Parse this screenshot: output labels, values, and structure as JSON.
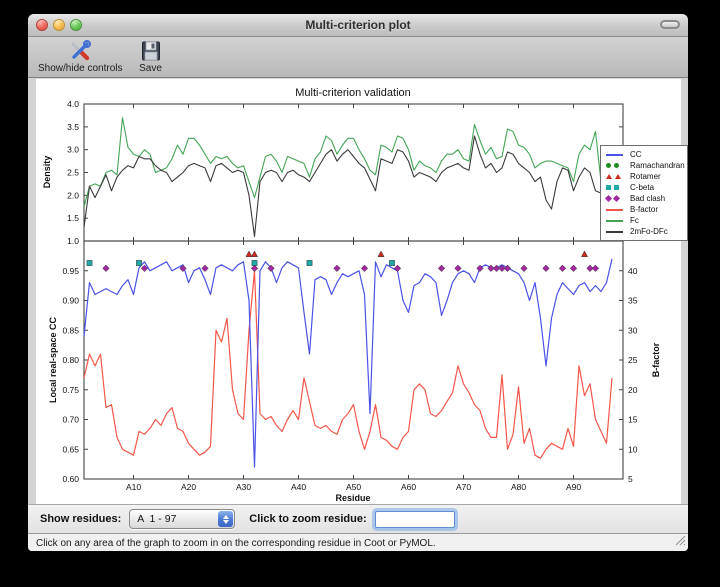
{
  "window": {
    "title": "Multi-criterion plot"
  },
  "toolbar": {
    "buttons": [
      {
        "label": "Show/hide controls",
        "icon": "tools-icon"
      },
      {
        "label": "Save",
        "icon": "save-icon"
      }
    ]
  },
  "figure": {
    "legend": {
      "items": [
        {
          "label": "CC",
          "swatch": "line",
          "color": "#4a52e8"
        },
        {
          "label": "Ramachandran",
          "swatch": "circle",
          "color": "#1e8c1e"
        },
        {
          "label": "Rotamer",
          "swatch": "triangle",
          "color": "#cc2b1d"
        },
        {
          "label": "C-beta",
          "swatch": "square",
          "color": "#1fa8a8"
        },
        {
          "label": "Bad clash",
          "swatch": "diamond",
          "color": "#a128a1"
        },
        {
          "label": "B-factor",
          "swatch": "line",
          "color": "#f4564a"
        },
        {
          "label": "Fc",
          "swatch": "line",
          "color": "#44a455"
        },
        {
          "label": "2mFo-DFc",
          "swatch": "line",
          "color": "#3a3a3a"
        }
      ]
    }
  },
  "controls": {
    "show_residues_label": "Show residues:",
    "residue_range_value": "A  1 - 97",
    "zoom_label": "Click to zoom residue:",
    "zoom_input_value": ""
  },
  "statusbar": {
    "text": "Click on any area of the graph to zoom in on the corresponding residue in Coot or PyMOL."
  },
  "chart_data": [
    {
      "type": "line",
      "title": "Multi-criterion validation",
      "ylabel": "Density",
      "ylim": [
        1.0,
        4.0
      ],
      "yticks": [
        1.0,
        1.5,
        2.0,
        2.5,
        3.0,
        3.5,
        4.0
      ],
      "xlim": [
        1,
        99
      ],
      "x_is_residue_index_starting_at": 1,
      "series": [
        {
          "name": "Fc",
          "color": "#44a455",
          "values": [
            1.75,
            2.2,
            2.25,
            2.2,
            2.5,
            2.55,
            2.45,
            3.7,
            3.05,
            2.9,
            2.85,
            3.0,
            2.9,
            2.5,
            2.55,
            2.6,
            2.8,
            3.1,
            2.9,
            3.25,
            3.25,
            3.1,
            2.9,
            2.7,
            2.85,
            2.8,
            2.85,
            2.7,
            2.6,
            2.65,
            2.3,
            1.95,
            2.4,
            2.85,
            2.9,
            2.75,
            2.5,
            2.85,
            2.8,
            2.75,
            2.7,
            2.4,
            2.8,
            2.95,
            3.3,
            3.2,
            2.9,
            3.1,
            3.25,
            3.25,
            3.0,
            2.8,
            2.55,
            2.45,
            3.1,
            3.05,
            2.95,
            3.3,
            3.25,
            3.0,
            2.55,
            2.75,
            2.65,
            2.6,
            2.5,
            2.75,
            2.9,
            2.9,
            3.0,
            2.8,
            2.75,
            3.55,
            3.2,
            2.9,
            3.05,
            2.8,
            2.85,
            3.45,
            3.4,
            3.1,
            3.05,
            2.9,
            2.6,
            2.7,
            2.75,
            2.75,
            2.7,
            2.65,
            2.6,
            2.3,
            2.9,
            3.1,
            3.0,
            3.4,
            2.3,
            2.5,
            2.9
          ]
        },
        {
          "name": "2mFo-DFc",
          "color": "#3a3a3a",
          "values": [
            1.3,
            2.2,
            1.95,
            2.2,
            2.45,
            2.1,
            2.4,
            2.55,
            2.65,
            2.6,
            2.85,
            2.8,
            2.8,
            2.65,
            2.55,
            2.5,
            2.3,
            2.4,
            2.5,
            2.65,
            2.7,
            2.65,
            2.6,
            2.3,
            2.65,
            2.7,
            2.6,
            2.5,
            2.55,
            2.5,
            2.0,
            1.1,
            2.3,
            2.5,
            2.55,
            2.5,
            2.3,
            2.5,
            2.55,
            2.45,
            2.4,
            2.3,
            2.5,
            2.7,
            2.9,
            3.0,
            2.75,
            2.9,
            3.0,
            2.85,
            2.7,
            2.6,
            2.35,
            2.1,
            2.8,
            2.75,
            2.7,
            3.0,
            2.95,
            2.75,
            2.4,
            2.5,
            2.45,
            2.4,
            2.3,
            2.5,
            2.6,
            2.65,
            2.7,
            2.6,
            2.55,
            3.3,
            2.9,
            2.6,
            2.7,
            2.5,
            2.6,
            2.95,
            2.9,
            2.7,
            2.6,
            2.5,
            2.3,
            2.4,
            1.9,
            1.7,
            2.3,
            2.6,
            2.55,
            2.1,
            2.4,
            2.6,
            2.5,
            2.1,
            2.05,
            2.4,
            2.9
          ]
        }
      ]
    },
    {
      "type": "line",
      "ylabel": "Local real-space CC",
      "ylabel_right": "B-factor",
      "xlabel": "Residue",
      "ylim": [
        0.6,
        1.0
      ],
      "yticks": [
        0.6,
        0.65,
        0.7,
        0.75,
        0.8,
        0.85,
        0.9,
        0.95
      ],
      "ylim_right": [
        5,
        45
      ],
      "yticks_right": [
        5,
        10,
        15,
        20,
        25,
        30,
        35,
        40
      ],
      "xlim": [
        1,
        99
      ],
      "xticks": [
        10,
        20,
        30,
        40,
        50,
        60,
        70,
        80,
        90
      ],
      "xtick_labels": [
        "A10",
        "A20",
        "A30",
        "A40",
        "A50",
        "A60",
        "A70",
        "A80",
        "A90"
      ],
      "series": [
        {
          "name": "CC",
          "axis": "left",
          "color": "#4a52e8",
          "values": [
            0.84,
            0.93,
            0.91,
            0.915,
            0.92,
            0.915,
            0.91,
            0.925,
            0.935,
            0.91,
            0.955,
            0.965,
            0.95,
            0.955,
            0.96,
            0.965,
            0.95,
            0.955,
            0.96,
            0.93,
            0.95,
            0.955,
            0.935,
            0.91,
            0.955,
            0.96,
            0.955,
            0.95,
            0.96,
            0.965,
            0.9,
            0.62,
            0.95,
            0.965,
            0.955,
            0.93,
            0.955,
            0.965,
            0.96,
            0.955,
            0.88,
            0.81,
            0.935,
            0.94,
            0.935,
            0.91,
            0.93,
            0.945,
            0.94,
            0.945,
            0.95,
            0.91,
            0.71,
            0.965,
            0.94,
            0.96,
            0.955,
            0.95,
            0.9,
            0.88,
            0.925,
            0.93,
            0.945,
            0.94,
            0.93,
            0.875,
            0.9,
            0.93,
            0.945,
            0.95,
            0.945,
            0.93,
            0.955,
            0.96,
            0.955,
            0.955,
            0.96,
            0.955,
            0.95,
            0.945,
            0.93,
            0.9,
            0.93,
            0.87,
            0.79,
            0.87,
            0.91,
            0.93,
            0.92,
            0.91,
            0.925,
            0.93,
            0.915,
            0.925,
            0.915,
            0.93,
            0.97
          ]
        },
        {
          "name": "B-factor",
          "axis": "right",
          "color": "#f4564a",
          "values": [
            22,
            26,
            24,
            26,
            17,
            17.5,
            12,
            10,
            9.5,
            9,
            13,
            12.5,
            13.5,
            15,
            14,
            16,
            17,
            13.5,
            13,
            11,
            10,
            9,
            9.5,
            10.5,
            30,
            28,
            32,
            20,
            16,
            15,
            30,
            40,
            16,
            15,
            15.5,
            14,
            13,
            15,
            16.5,
            15,
            22,
            18,
            14,
            13.5,
            14,
            13,
            12.5,
            15,
            16,
            17.5,
            13,
            10,
            13,
            17.5,
            12,
            11.5,
            10.5,
            10,
            12,
            13,
            20,
            21,
            20,
            16,
            15.5,
            16.5,
            18,
            19.5,
            24,
            21,
            19.5,
            17.5,
            16.5,
            13.5,
            12,
            12,
            22.5,
            10,
            12.5,
            20.5,
            11,
            13.5,
            9,
            8.5,
            10,
            11,
            10.5,
            10,
            13.5,
            10.5,
            24,
            19,
            21,
            15,
            13,
            11,
            22
          ]
        }
      ],
      "markers": [
        {
          "name": "Rotamer",
          "shape": "triangle",
          "color": "#cc2b1d",
          "y": 0.978,
          "residues": [
            31,
            32,
            55,
            92
          ]
        },
        {
          "name": "C-beta",
          "shape": "square",
          "color": "#1fa8a8",
          "y": 0.963,
          "residues": [
            2,
            11,
            32,
            42,
            57
          ]
        },
        {
          "name": "Bad clash",
          "shape": "diamond",
          "color": "#a128a1",
          "y": 0.954,
          "residues": [
            5,
            12,
            19,
            23,
            32,
            35,
            47,
            52,
            58,
            66,
            69,
            73,
            75,
            76,
            77,
            78,
            81,
            85,
            88,
            90,
            93,
            94
          ]
        },
        {
          "name": "Ramachandran",
          "shape": "circle",
          "color": "#1e8c1e",
          "y": 0.99,
          "residues": []
        }
      ]
    }
  ]
}
